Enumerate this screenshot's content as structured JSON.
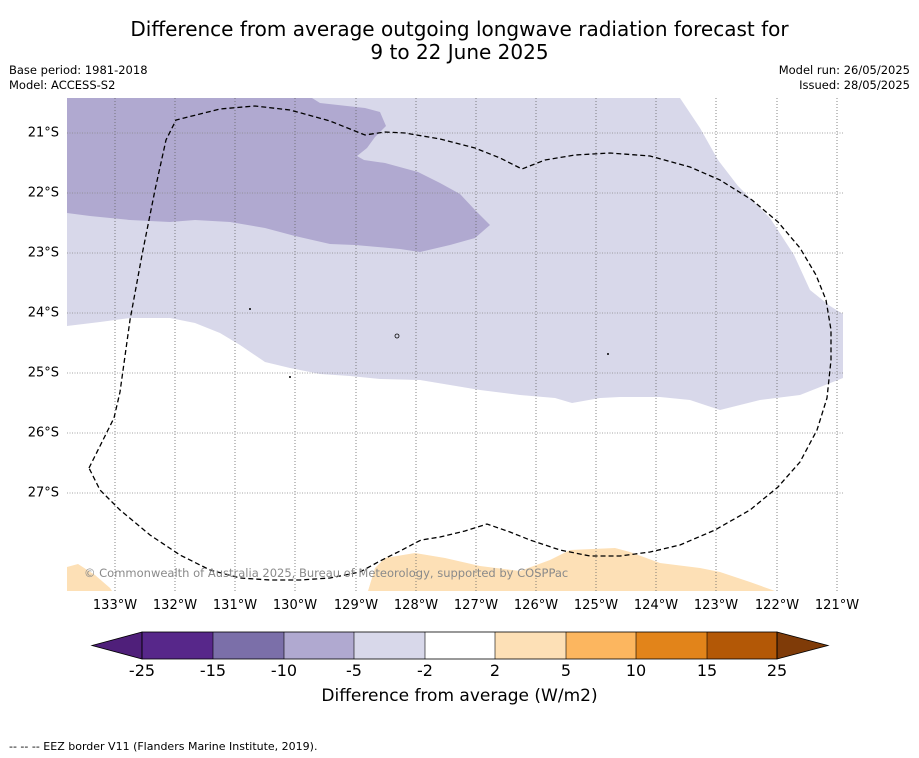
{
  "title_line1": "Difference from average outgoing longwave radiation forecast for",
  "title_line2": "9 to 22 June 2025",
  "meta_left": [
    "Base period: 1981-2018",
    "Model: ACCESS-S2"
  ],
  "meta_right": [
    "Model run: 26/05/2025",
    "Issued: 28/05/2025"
  ],
  "copyright": "© Commonwealth of Australia 2025, Bureau of Meteorology, supported by COSPPac",
  "latitude_labels": [
    "21°S",
    "22°S",
    "23°S",
    "24°S",
    "25°S",
    "26°S",
    "27°S"
  ],
  "longitude_labels": [
    "133°W",
    "132°W",
    "131°W",
    "130°W",
    "129°W",
    "128°W",
    "127°W",
    "126°W",
    "125°W",
    "124°W",
    "123°W",
    "122°W",
    "121°W"
  ],
  "colorbar": {
    "ticks": [
      "-25",
      "-15",
      "-10",
      "-5",
      "-2",
      "2",
      "5",
      "10",
      "15",
      "25"
    ],
    "colors": [
      "#4f1f7a",
      "#57278a",
      "#7b6fa9",
      "#b0a9d0",
      "#d8d8ea",
      "#ffffff",
      "#fde0b6",
      "#fcb65f",
      "#e2841a",
      "#b35806",
      "#7f3b08"
    ],
    "label": "Difference from average (W/m2)"
  },
  "footer": "--  --  -- EEZ border V11 (Flanders Marine Institute, 2019)."
}
